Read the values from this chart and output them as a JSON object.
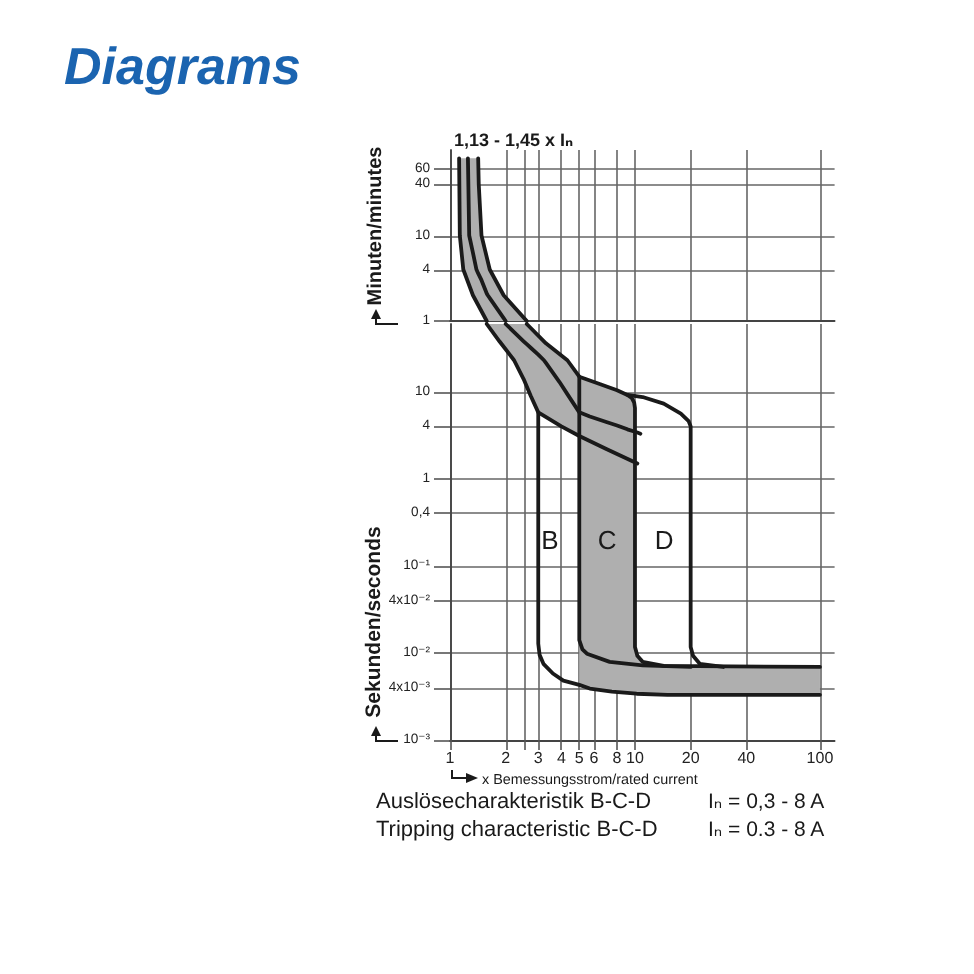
{
  "chart_data": [
    {
      "type": "line",
      "title": "Diagrams",
      "ylabel": "Minuten/minutes",
      "log": "xy",
      "grid": true,
      "tick_labels": "y",
      "xlim": [
        1,
        120
      ],
      "xticks": [
        1,
        2,
        {
          "value": 2.5,
          "label": null
        },
        3,
        4,
        5,
        6,
        8,
        10,
        20,
        40,
        100
      ],
      "ylim": [
        1,
        100
      ],
      "yticks": [
        60,
        40,
        10,
        4,
        1
      ],
      "series": [
        {
          "color": "#1a1a1a",
          "x": [
            1.12,
            1.13,
            1.18,
            1.25,
            1.27,
            1.33,
            1.39,
            1.42,
            1.43,
            1.48,
            1.58,
            1.6,
            1.64,
            1.95,
            2,
            2.6
          ],
          "values": [
            null,
            null,
            null,
            80,
            10,
            6.3,
            4,
            3.6,
            3.5,
            3,
            2.1,
            2,
            1.85,
            1.08,
            1,
            null
          ],
          "lower": [
            80,
            10,
            4,
            2.87,
            2.58,
            2,
            1.68,
            1.54,
            1.5,
            1.3,
            1,
            1,
            1,
            1,
            1,
            1
          ],
          "upper": [
            80,
            80,
            80,
            80,
            80,
            80,
            80,
            80,
            40,
            10,
            5.6,
            5,
            4,
            2,
            1.88,
            1
          ]
        },
        {
          "color": "#1a1a1a",
          "x": [
            1.12,
            1.13,
            1.18,
            1.33,
            1.58
          ],
          "values": [
            80,
            10,
            4,
            2,
            1
          ]
        },
        {
          "color": "#1a1a1a",
          "x": [
            1.42,
            1.43,
            1.48,
            1.64,
            1.95,
            2.6
          ],
          "values": [
            80,
            40,
            10,
            4,
            2,
            1
          ]
        }
      ],
      "annotations": [
        "1,13 - 1,45 x Iₙ"
      ]
    },
    {
      "type": "line",
      "xlabel": "x Bemessungsstrom/rated current",
      "ylabel": "Sekunden/seconds",
      "log": "xy",
      "grid": true,
      "xlim": [
        1,
        120
      ],
      "xticks": [
        1,
        2,
        {
          "value": 2.5,
          "label": null
        },
        3,
        4,
        5,
        6,
        8,
        10,
        20,
        40,
        100
      ],
      "ylim": [
        0.001,
        60
      ],
      "yticks": [
        10,
        4,
        1,
        {
          "value": 0.4,
          "label": "0,4"
        },
        {
          "value": 0.1,
          "label": "10⁻¹"
        },
        {
          "value": 0.04,
          "label": "4x10⁻²"
        },
        {
          "value": 0.01,
          "label": "10⁻²"
        },
        {
          "value": 0.004,
          "label": "4x10⁻³"
        },
        {
          "value": 0.001,
          "label": "10⁻³"
        }
      ],
      "series": [
        {
          "color": "#1a1a1a",
          "x": [
            1.58,
            2,
            2.22,
            2.5,
            2.6,
            2.73,
            3,
            3.22,
            3.3,
            3.9,
            4.31,
            5,
            5,
            5.7,
            7,
            8,
            9.1,
            9.9,
            10,
            10,
            10.3,
            10.7,
            11,
            14.3,
            100
          ],
          "values": [
            null,
            60,
            48.4,
            38,
            35.2,
            32,
            26.7,
            23,
            21.4,
            13,
            9.4,
            5.8,
            5.8,
            5.2,
            4.5,
            4.1,
            3.7,
            3.5,
            3.5,
            3.5,
            3.4,
            3.3,
            null,
            null,
            null
          ],
          "lower": [
            60,
            30.6,
            23,
            14,
            11.5,
            9,
            5.8,
            5.3,
            5.1,
            4.1,
            3.7,
            3.1,
            0.0043,
            0.0039,
            0.0037,
            0.0036,
            0.0035,
            0.0034,
            0.0034,
            0.0034,
            0.0034,
            0.0034,
            0.0034,
            0.0033,
            0.0033
          ],
          "upper": [
            60,
            60,
            60,
            60,
            60,
            54,
            44,
            37.5,
            36,
            27.2,
            23,
            14.9,
            14.9,
            13.5,
            11.5,
            10.4,
            9.2,
            7.5,
            6.5,
            0.0117,
            0.0093,
            0.0085,
            0.0079,
            0.0071,
            0.0069
          ]
        },
        {
          "color": "#1a1a1a",
          "x": [
            1.58,
            1.85,
            2.22,
            2.5,
            2.73,
            3,
            4,
            5,
            7,
            10.3
          ],
          "values": [
            60,
            38,
            23,
            14,
            9,
            5.8,
            4,
            3.1,
            2.2,
            1.5
          ]
        },
        {
          "color": "#1a1a1a",
          "x": [
            2.6,
            3.3,
            4.31,
            5,
            6.5,
            8,
            9.1,
            9.6,
            9.9,
            10,
            10,
            10.3,
            11,
            14.3,
            100
          ],
          "values": [
            60,
            36,
            23,
            14.9,
            12.2,
            10.4,
            9.2,
            8.5,
            7.5,
            6.5,
            0.0117,
            0.0093,
            0.0079,
            0.0071,
            0.0069
          ]
        },
        {
          "color": "#1a1a1a",
          "x": [
            9.1,
            11,
            14.3,
            17.7,
            19.5,
            20,
            20,
            20.6,
            22.4,
            30
          ],
          "values": [
            9.2,
            8.7,
            7.3,
            5.6,
            4.6,
            4,
            0.0117,
            0.0093,
            0.0075,
            0.0069
          ]
        },
        {
          "color": "#1a1a1a",
          "x": [
            3,
            3,
            3.05,
            3.2,
            3.6,
            4.1,
            5,
            5.7,
            7.5,
            10.2,
            15,
            100
          ],
          "values": [
            5.8,
            0.0128,
            0.0095,
            0.0075,
            0.0058,
            0.0048,
            0.0043,
            0.0039,
            0.0036,
            0.0034,
            0.0033,
            0.0033
          ]
        },
        {
          "color": "#1a1a1a",
          "x": [
            5,
            5,
            5.2,
            5.5,
            7.3,
            11,
            20
          ],
          "values": [
            14.9,
            0.014,
            0.011,
            0.0098,
            0.0079,
            0.0072,
            0.0069
          ]
        }
      ],
      "annotations": [
        "B",
        "C",
        "D",
        "Auslösecharakteristik B-C-D",
        "Iₙ = 0,3 - 8 A",
        "Tripping characteristic B-C-D",
        "Iₙ = 0.3 - 8 A"
      ]
    }
  ]
}
